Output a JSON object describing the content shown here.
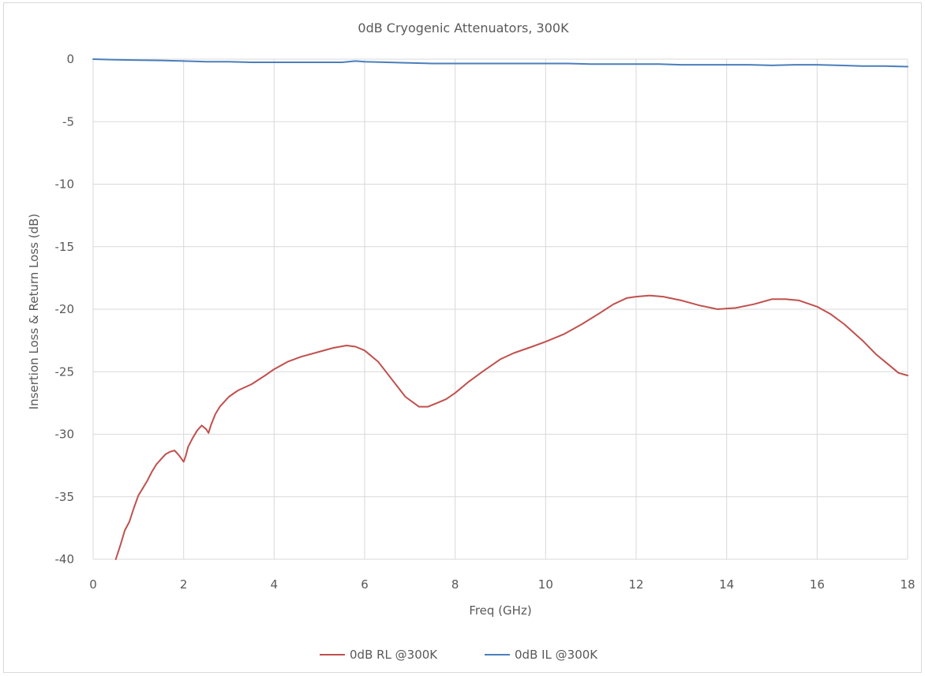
{
  "chart_data": {
    "type": "line",
    "title": "0dB Cryogenic Attenuators, 300K",
    "xlabel": "Freq (GHz)",
    "ylabel": "Insertion Loss & Return Loss (dB)",
    "xlim": [
      0,
      18
    ],
    "ylim": [
      -40,
      0
    ],
    "x_ticks": [
      "0",
      "2",
      "4",
      "6",
      "8",
      "10",
      "12",
      "14",
      "16",
      "18"
    ],
    "y_ticks": [
      "0",
      "-5",
      "-10",
      "-15",
      "-20",
      "-25",
      "-30",
      "-35",
      "-40"
    ],
    "grid": true,
    "legend_position": "bottom",
    "series": [
      {
        "name": "0dB RL @300K",
        "color": "#c0504d",
        "x": [
          0.5,
          0.6,
          0.7,
          0.8,
          0.9,
          1.0,
          1.1,
          1.2,
          1.3,
          1.4,
          1.5,
          1.6,
          1.7,
          1.8,
          1.9,
          2.0,
          2.05,
          2.1,
          2.2,
          2.3,
          2.4,
          2.5,
          2.55,
          2.6,
          2.7,
          2.8,
          3.0,
          3.2,
          3.5,
          3.8,
          4.0,
          4.3,
          4.6,
          5.0,
          5.3,
          5.6,
          5.8,
          6.0,
          6.3,
          6.6,
          6.9,
          7.2,
          7.4,
          7.6,
          7.8,
          8.0,
          8.3,
          8.6,
          9.0,
          9.3,
          9.7,
          10.0,
          10.4,
          10.8,
          11.2,
          11.5,
          11.8,
          12.0,
          12.3,
          12.6,
          13.0,
          13.4,
          13.8,
          14.2,
          14.6,
          15.0,
          15.3,
          15.6,
          16.0,
          16.3,
          16.6,
          17.0,
          17.3,
          17.6,
          17.8,
          18.0
        ],
        "values": [
          -40.0,
          -38.9,
          -37.7,
          -37.0,
          -35.9,
          -34.9,
          -34.3,
          -33.7,
          -33.0,
          -32.4,
          -32.0,
          -31.6,
          -31.4,
          -31.3,
          -31.7,
          -32.2,
          -31.7,
          -31.0,
          -30.3,
          -29.7,
          -29.3,
          -29.6,
          -29.9,
          -29.3,
          -28.4,
          -27.8,
          -27.0,
          -26.5,
          -26.0,
          -25.3,
          -24.8,
          -24.2,
          -23.8,
          -23.4,
          -23.1,
          -22.9,
          -23.0,
          -23.3,
          -24.2,
          -25.6,
          -27.0,
          -27.8,
          -27.8,
          -27.5,
          -27.2,
          -26.7,
          -25.8,
          -25.0,
          -24.0,
          -23.5,
          -23.0,
          -22.6,
          -22.0,
          -21.2,
          -20.3,
          -19.6,
          -19.1,
          -19.0,
          -18.9,
          -19.0,
          -19.3,
          -19.7,
          -20.0,
          -19.9,
          -19.6,
          -19.2,
          -19.2,
          -19.3,
          -19.8,
          -20.4,
          -21.2,
          -22.5,
          -23.6,
          -24.5,
          -25.1,
          -25.3
        ]
      },
      {
        "name": "0dB IL @300K",
        "color": "#4a7ebb",
        "x": [
          0.0,
          0.5,
          1.0,
          1.5,
          2.0,
          2.5,
          3.0,
          3.5,
          4.0,
          4.5,
          5.0,
          5.5,
          5.8,
          6.0,
          6.5,
          7.0,
          7.5,
          8.0,
          8.5,
          9.0,
          9.5,
          10.0,
          10.5,
          11.0,
          11.5,
          12.0,
          12.5,
          13.0,
          13.5,
          14.0,
          14.5,
          15.0,
          15.5,
          16.0,
          16.5,
          17.0,
          17.5,
          18.0
        ],
        "values": [
          0.0,
          -0.05,
          -0.08,
          -0.1,
          -0.15,
          -0.2,
          -0.2,
          -0.25,
          -0.25,
          -0.25,
          -0.25,
          -0.25,
          -0.15,
          -0.2,
          -0.25,
          -0.3,
          -0.35,
          -0.35,
          -0.35,
          -0.35,
          -0.35,
          -0.35,
          -0.35,
          -0.4,
          -0.4,
          -0.4,
          -0.4,
          -0.45,
          -0.45,
          -0.45,
          -0.45,
          -0.5,
          -0.45,
          -0.45,
          -0.5,
          -0.55,
          -0.55,
          -0.6
        ]
      }
    ]
  }
}
